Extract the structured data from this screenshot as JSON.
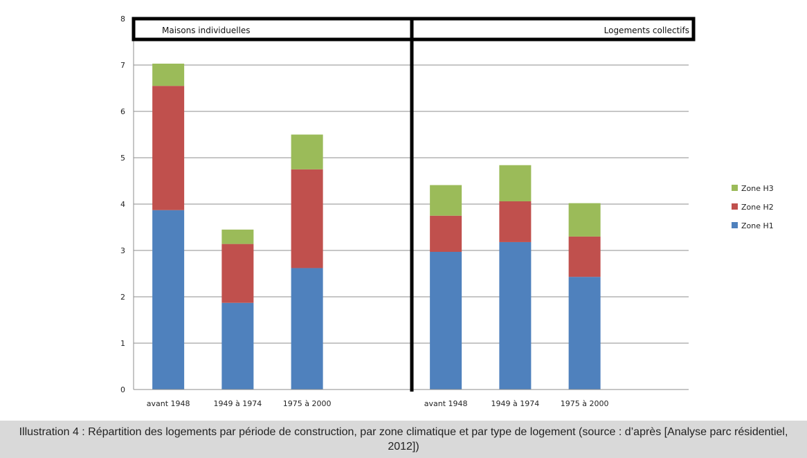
{
  "caption": "Illustration 4 : Répartition des logements par période de construction, par zone climatique et par type de logement (source : d’après [Analyse parc résidentiel, 2012])",
  "chart_data": {
    "type": "bar",
    "stacked": true,
    "groups": [
      {
        "label": "Maisons individuelles",
        "categories": [
          "avant 1948",
          "1949 à 1974",
          "1975 à 2000"
        ]
      },
      {
        "label": "Logements collectifs",
        "categories": [
          "avant 1948",
          "1949 à 1974",
          "1975 à 2000"
        ]
      }
    ],
    "categories": [
      "avant 1948",
      "1949 à 1974",
      "1975 à 2000",
      "avant 1948",
      "1949 à 1974",
      "1975 à 2000"
    ],
    "series": [
      {
        "name": "Zone H1",
        "color": "#4f81bd",
        "values": [
          3.87,
          1.87,
          2.62,
          2.97,
          3.18,
          2.43
        ]
      },
      {
        "name": "Zone H2",
        "color": "#c0504d",
        "values": [
          2.68,
          1.27,
          2.13,
          0.78,
          0.88,
          0.87
        ]
      },
      {
        "name": "Zone H3",
        "color": "#9bbb59",
        "values": [
          0.48,
          0.31,
          0.75,
          0.66,
          0.78,
          0.72
        ]
      }
    ],
    "ylim": [
      0,
      8
    ],
    "yticks": [
      "0",
      "1",
      "2",
      "3",
      "4",
      "5",
      "6",
      "7",
      "8"
    ],
    "grid": true,
    "legend": "right",
    "xlabel": "",
    "ylabel": ""
  }
}
